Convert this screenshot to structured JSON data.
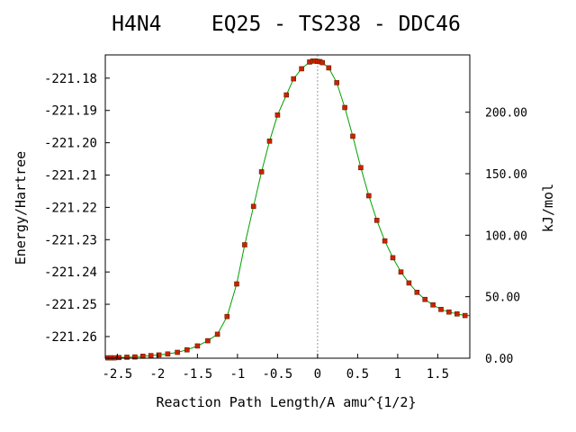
{
  "chart_data": {
    "type": "line",
    "title": "H4N4    EQ25 - TS238 - DDC46",
    "xlabel": "Reaction Path Length/A amu^{1/2}",
    "ylabel": "Energy/Hartree",
    "y2label": "kJ/mol",
    "xlim": [
      -2.65,
      1.9
    ],
    "ylim": [
      -221.2667,
      -221.1728
    ],
    "y2lim": [
      0.0,
      246.6
    ],
    "x_ticks": [
      -2.5,
      -2,
      -1.5,
      -1,
      -0.5,
      0,
      0.5,
      1,
      1.5
    ],
    "x_tick_labels": [
      "-2.5",
      "-2",
      "-1.5",
      "-1",
      "-0.5",
      "0",
      "0.5",
      "1",
      "1.5"
    ],
    "y_ticks": [
      -221.18,
      -221.19,
      -221.2,
      -221.21,
      -221.22,
      -221.23,
      -221.24,
      -221.25,
      -221.26
    ],
    "y_tick_labels": [
      "-221.18",
      "-221.19",
      "-221.20",
      "-221.21",
      "-221.22",
      "-221.23",
      "-221.24",
      "-221.25",
      "-221.26"
    ],
    "y2_ticks": [
      0,
      50,
      100,
      150,
      200
    ],
    "y2_tick_labels": [
      "0.00",
      "50.00",
      "100.00",
      "150.00",
      "200.00"
    ],
    "grid": false,
    "ts_marker_x": 0.0,
    "colors": {
      "line": "#00a000",
      "marker": "#cc2200",
      "marker_edge": "#662200",
      "ts_line": "#999999",
      "frame": "#000000"
    },
    "series": [
      {
        "x": [
          -2.62,
          -2.58,
          -2.54,
          -2.48,
          -2.38,
          -2.28,
          -2.18,
          -2.08,
          -1.98,
          -1.87,
          -1.75,
          -1.63,
          -1.5,
          -1.37,
          -1.25,
          -1.13,
          -1.01,
          -0.91,
          -0.8,
          -0.7,
          -0.6,
          -0.5,
          -0.39,
          -0.3,
          -0.2,
          -0.1,
          -0.06,
          -0.03,
          0.0,
          0.03,
          0.06,
          0.14,
          0.24,
          0.34,
          0.44,
          0.54,
          0.64,
          0.74,
          0.84,
          0.94,
          1.04,
          1.14,
          1.24,
          1.34,
          1.44,
          1.54,
          1.64,
          1.74,
          1.84
        ],
        "y": [
          -221.2666,
          -221.2666,
          -221.2666,
          -221.2665,
          -221.2664,
          -221.2663,
          -221.2661,
          -221.2659,
          -221.2657,
          -221.2654,
          -221.2649,
          -221.2641,
          -221.2629,
          -221.2613,
          -221.2593,
          -221.2538,
          -221.2437,
          -221.2316,
          -221.2197,
          -221.209,
          -221.1995,
          -221.1914,
          -221.1852,
          -221.1802,
          -221.1771,
          -221.175,
          -221.1747,
          -221.1747,
          -221.1748,
          -221.1749,
          -221.1752,
          -221.1768,
          -221.1814,
          -221.1891,
          -221.198,
          -221.2077,
          -221.2164,
          -221.224,
          -221.2304,
          -221.2356,
          -221.24,
          -221.2434,
          -221.2463,
          -221.2485,
          -221.2502,
          -221.2516,
          -221.2524,
          -221.253,
          -221.2535
        ]
      }
    ]
  }
}
